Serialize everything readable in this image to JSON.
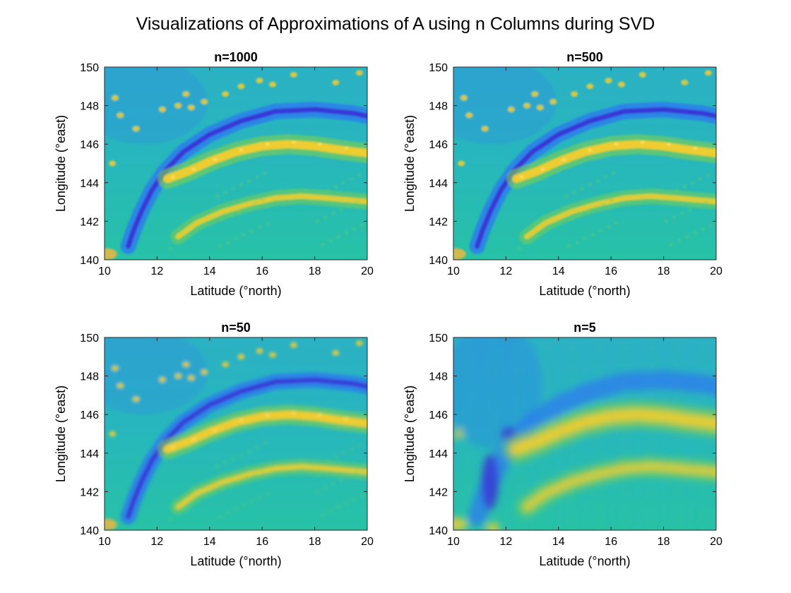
{
  "suptitle": "Visualizations of Approximations of A using n Columns during SVD",
  "colors": {
    "deep": "#3a2fd6",
    "blue": "#2b7bf0",
    "background": "#2bb1c4",
    "teal": "#27c2a6",
    "green": "#7fd04c",
    "yellow": "#f5ce2f",
    "gold": "#fbb63a"
  },
  "chart_data": [
    {
      "type": "heatmap",
      "title": "n=1000",
      "xlabel": "Latitude (°north)",
      "ylabel": "Longitude (°east)",
      "xlim": [
        10,
        20
      ],
      "ylim": [
        140,
        150
      ],
      "xticks": [
        "10",
        "12",
        "14",
        "16",
        "18",
        "20"
      ],
      "yticks": [
        "140",
        "142",
        "144",
        "146",
        "148",
        "150"
      ],
      "rank": 1000,
      "features": {
        "trench": "low values along an arc from (11.0, 140.8) curving to (20, 147.6)",
        "ridge_west": "high values along arc from (12.5, 144.3) to (20, 145.5)",
        "ridge_east": "high values along arc from (13.0, 141.5) to (20, 143.0)"
      }
    },
    {
      "type": "heatmap",
      "title": "n=500",
      "xlabel": "Latitude (°north)",
      "ylabel": "Longitude (°east)",
      "xlim": [
        10,
        20
      ],
      "ylim": [
        140,
        150
      ],
      "xticks": [
        "10",
        "12",
        "14",
        "16",
        "18",
        "20"
      ],
      "yticks": [
        "140",
        "142",
        "144",
        "146",
        "148",
        "150"
      ],
      "rank": 500
    },
    {
      "type": "heatmap",
      "title": "n=50",
      "xlabel": "Latitude (°north)",
      "ylabel": "Longitude (°east)",
      "xlim": [
        10,
        20
      ],
      "ylim": [
        140,
        150
      ],
      "xticks": [
        "10",
        "12",
        "14",
        "16",
        "18",
        "20"
      ],
      "yticks": [
        "140",
        "142",
        "144",
        "146",
        "148",
        "150"
      ],
      "rank": 50
    },
    {
      "type": "heatmap",
      "title": "n=5",
      "xlabel": "Latitude (°north)",
      "ylabel": "Longitude (°east)",
      "xlim": [
        10,
        20
      ],
      "ylim": [
        140,
        150
      ],
      "xticks": [
        "10",
        "12",
        "14",
        "16",
        "18",
        "20"
      ],
      "yticks": [
        "140",
        "142",
        "144",
        "146",
        "148",
        "150"
      ],
      "rank": 5
    }
  ]
}
